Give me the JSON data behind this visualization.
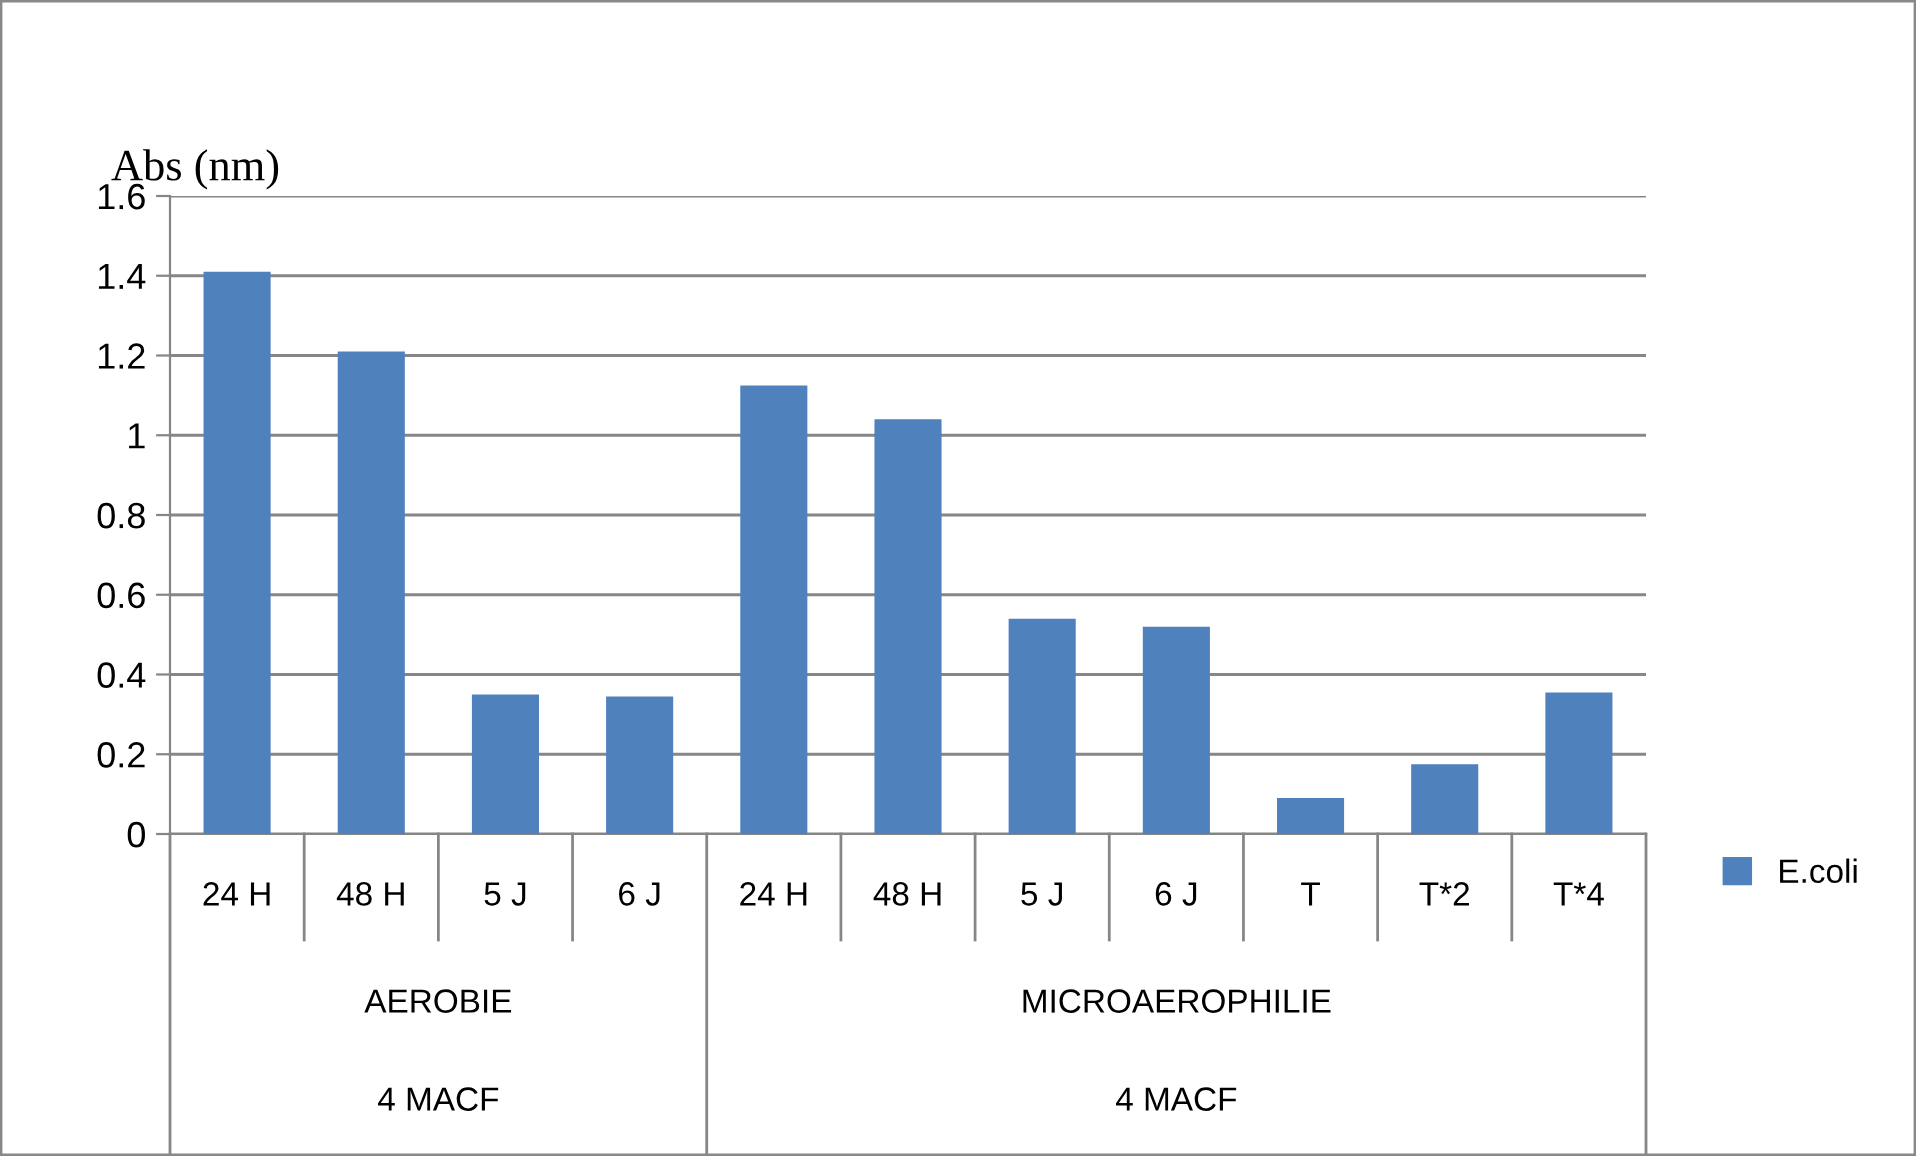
{
  "chart_data": {
    "type": "bar",
    "ylabel": "Abs (nm)",
    "categories": [
      "24 H",
      "48 H",
      "5 J",
      "6 J",
      "24 H",
      "48 H",
      "5 J",
      "6 J",
      "T",
      "T*2",
      "T*4"
    ],
    "series": [
      {
        "name": "E.coli",
        "color": "#4f81bd",
        "values": [
          1.41,
          1.21,
          0.35,
          0.345,
          1.125,
          1.04,
          0.54,
          0.52,
          0.09,
          0.175,
          0.355
        ]
      }
    ],
    "ylim": [
      0,
      1.6
    ],
    "yticks": [
      0,
      0.2,
      0.4,
      0.6,
      0.8,
      1,
      1.2,
      1.4,
      1.6
    ],
    "grid": "y",
    "legend": "right",
    "annotations": [
      "AEROBIE",
      "MICROAEROPHILIE",
      "4 MACF",
      "4 MACF"
    ]
  }
}
